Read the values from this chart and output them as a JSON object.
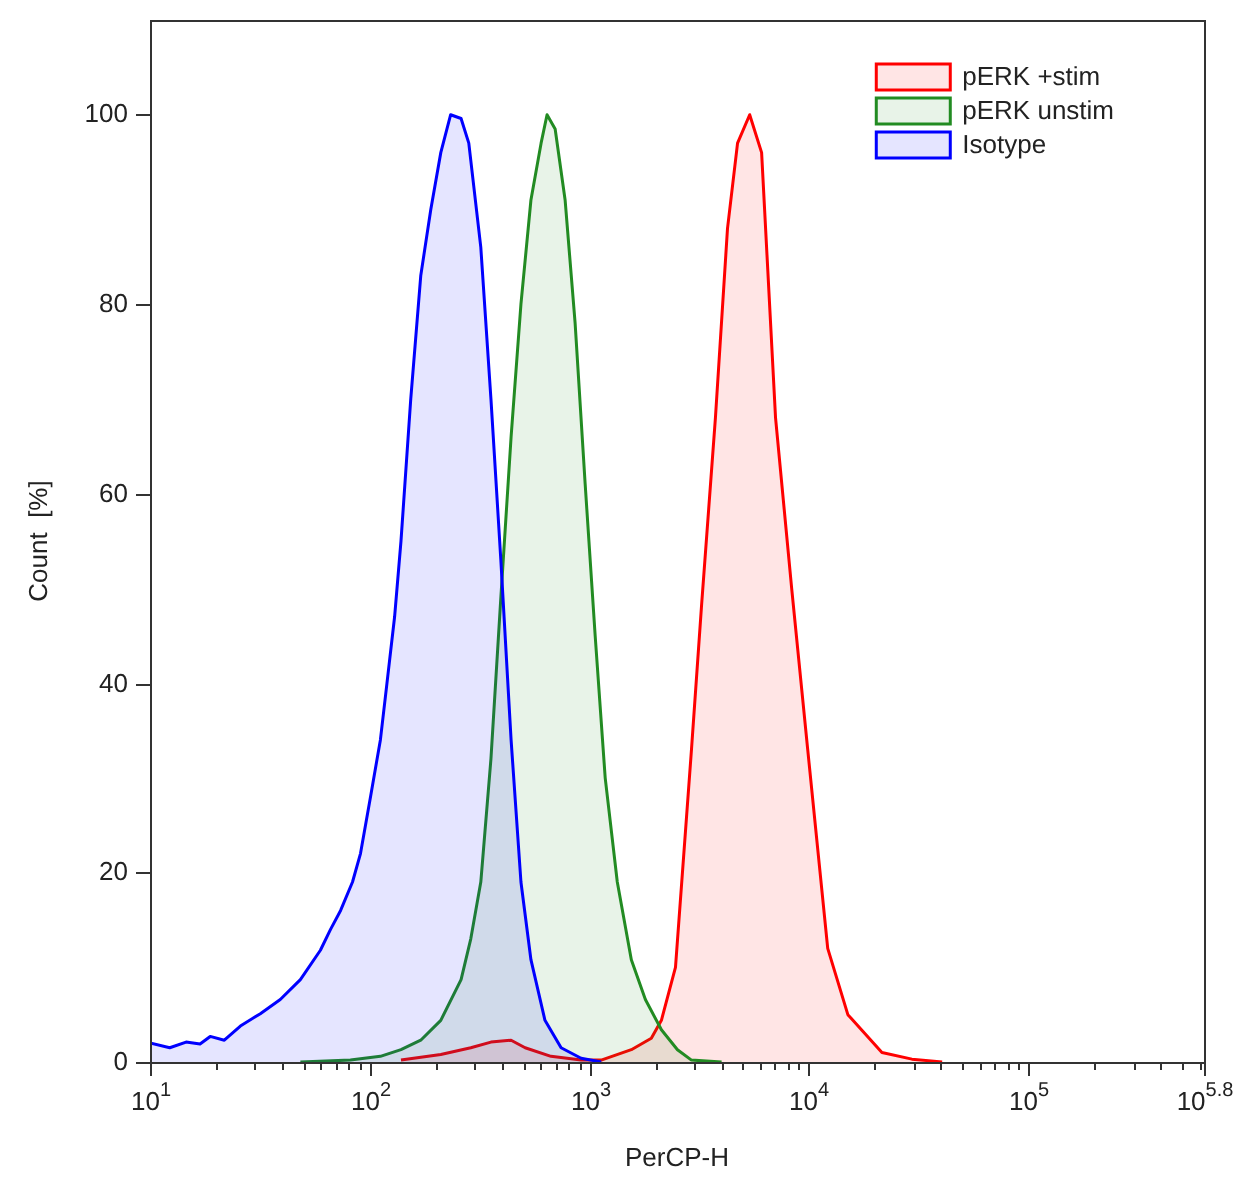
{
  "chart_data": {
    "type": "area",
    "xlabel": "PerCP-H",
    "ylabel": "Count  [%]",
    "xlim": [
      10,
      630957
    ],
    "ylim": [
      0,
      110
    ],
    "xticks": [
      {
        "value": 10,
        "label": "10$^{1}$"
      },
      {
        "value": 20,
        "label": null
      },
      {
        "value": 30,
        "label": null
      },
      {
        "value": 40,
        "label": null
      },
      {
        "value": 50,
        "label": null
      },
      {
        "value": 60,
        "label": null
      },
      {
        "value": 70,
        "label": null
      },
      {
        "value": 80,
        "label": null
      },
      {
        "value": 90,
        "label": null
      },
      {
        "value": 100,
        "label": "10$^{2}$"
      },
      {
        "value": 200,
        "label": null
      },
      {
        "value": 300,
        "label": null
      },
      {
        "value": 400,
        "label": null
      },
      {
        "value": 500,
        "label": null
      },
      {
        "value": 600,
        "label": null
      },
      {
        "value": 700,
        "label": null
      },
      {
        "value": 800,
        "label": null
      },
      {
        "value": 900,
        "label": null
      },
      {
        "value": 1000,
        "label": "10$^{3}$"
      },
      {
        "value": 2000,
        "label": null
      },
      {
        "value": 3000,
        "label": null
      },
      {
        "value": 4000,
        "label": null
      },
      {
        "value": 5000,
        "label": null
      },
      {
        "value": 6000,
        "label": null
      },
      {
        "value": 7000,
        "label": null
      },
      {
        "value": 8000,
        "label": null
      },
      {
        "value": 9000,
        "label": null
      },
      {
        "value": 10000,
        "label": "10$^{4}$"
      },
      {
        "value": 20000,
        "label": null
      },
      {
        "value": 30000,
        "label": null
      },
      {
        "value": 40000,
        "label": null
      },
      {
        "value": 50000,
        "label": null
      },
      {
        "value": 60000,
        "label": null
      },
      {
        "value": 70000,
        "label": null
      },
      {
        "value": 80000,
        "label": null
      },
      {
        "value": 90000,
        "label": null
      },
      {
        "value": 100000,
        "label": "10$^{5}$"
      },
      {
        "value": 200000,
        "label": null
      },
      {
        "value": 300000,
        "label": null
      },
      {
        "value": 400000,
        "label": null
      },
      {
        "value": 500000,
        "label": null
      },
      {
        "value": 600000,
        "label": null
      },
      {
        "value": 630957,
        "label": "10$^{5.8}$"
      }
    ],
    "yticks": [
      0,
      20,
      40,
      60,
      80,
      100
    ],
    "log": "x",
    "grid": false,
    "legend": "top right",
    "marker": "none",
    "series": [
      {
        "name": "pERK +stim",
        "color": "#ff0000",
        "x": [
          139,
          211,
          289,
          357,
          441,
          511,
          670,
          919,
          1135,
          1556,
          1919,
          2133,
          2472,
          2924,
          3245,
          3758,
          4266,
          4740,
          5383,
          6100,
          7060,
          8360,
          9890,
          12200,
          15070,
          21540,
          29500,
          40500
        ],
        "values": [
          0.2,
          0.8,
          1.5,
          2.1,
          2.3,
          1.5,
          0.6,
          0.2,
          0.2,
          1.3,
          2.5,
          4.4,
          10,
          33,
          48,
          68,
          88,
          97,
          100,
          96,
          68,
          50,
          33,
          12,
          5,
          1,
          0.3,
          0
        ]
      },
      {
        "name": "pERK unstim",
        "color": "#228b22",
        "x": [
          48.4,
          81.8,
          112,
          139,
          171,
          211,
          261,
          289,
          321,
          357,
          396,
          441,
          489,
          543,
          604,
          643,
          700,
          777,
          863,
          959,
          1065,
          1183,
          1343,
          1556,
          1803,
          2133,
          2524,
          2924,
          4010
        ],
        "values": [
          0,
          0.2,
          0.6,
          1.3,
          2.3,
          4.4,
          8.7,
          13,
          19,
          32,
          49,
          66,
          80,
          91,
          97,
          100,
          98.5,
          91,
          78,
          61,
          45,
          30,
          19,
          10.8,
          6.6,
          3.4,
          1.3,
          0.2,
          0
        ]
      },
      {
        "name": "Isotype",
        "color": "#0000ff",
        "x": [
          10,
          12.3,
          14.6,
          16.9,
          18.8,
          21.8,
          25.8,
          31.8,
          39.2,
          48.4,
          59.7,
          66.4,
          73.8,
          83.6,
          90.9,
          101,
          112,
          120,
          130,
          139,
          154,
          171,
          190,
          211,
          234,
          261,
          283,
          321,
          357,
          396,
          441,
          489,
          543,
          629,
          745,
          919,
          1135
        ],
        "values": [
          2,
          1.5,
          2.1,
          1.9,
          2.7,
          2.3,
          3.8,
          5.1,
          6.6,
          8.7,
          11.8,
          14,
          16,
          19,
          22,
          28,
          34,
          40,
          47,
          55,
          70,
          83,
          90,
          96,
          100,
          99.6,
          97,
          86,
          70,
          53,
          34,
          19,
          10.8,
          4.4,
          1.5,
          0.4,
          0
        ]
      }
    ]
  }
}
